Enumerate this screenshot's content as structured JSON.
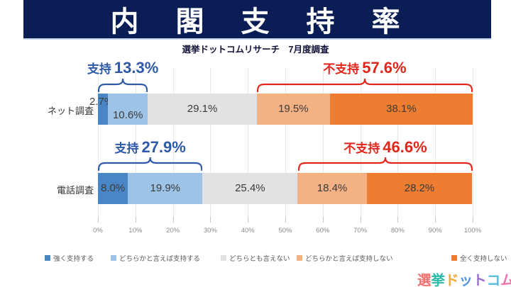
{
  "header": {
    "title": "内　閣　支　持　率",
    "subtitle": "選挙ドットコムリサーチ　7月度調査",
    "banner_color": "#0A1E55"
  },
  "chart_data": {
    "type": "bar",
    "orientation": "horizontal-stacked",
    "xlim": [
      0,
      100
    ],
    "grid": true,
    "x_ticks": [
      "0%",
      "10%",
      "20%",
      "30%",
      "40%",
      "50%",
      "60%",
      "70%",
      "80%",
      "90%",
      "100%"
    ],
    "categories": [
      "ネット調査",
      "電話調査"
    ],
    "series": [
      {
        "name": "強く支持する",
        "color": "#4A86C5",
        "values": [
          2.7,
          8.0
        ]
      },
      {
        "name": "どちらかと言えば支持する",
        "color": "#9DC3E6",
        "values": [
          10.6,
          19.9
        ]
      },
      {
        "name": "どちらとも言えない",
        "color": "#E2E2E2",
        "values": [
          29.1,
          25.4
        ]
      },
      {
        "name": "どちらかと言えば支持しない",
        "color": "#F4B183",
        "values": [
          19.5,
          18.4
        ]
      },
      {
        "name": "全く支持しない",
        "color": "#ED7D31",
        "values": [
          38.1,
          28.2
        ]
      }
    ],
    "annotations": [
      {
        "row": 0,
        "type": "support",
        "word": "支持",
        "value_text": "13.3%",
        "color": "#2D59A7",
        "span": [
          0,
          13.3
        ]
      },
      {
        "row": 0,
        "type": "oppose",
        "word": "不支持",
        "value_text": "57.6%",
        "color": "#E1251B",
        "span": [
          42.4,
          100
        ]
      },
      {
        "row": 1,
        "type": "support",
        "word": "支持",
        "value_text": "27.9%",
        "color": "#2D59A7",
        "span": [
          0,
          27.9
        ]
      },
      {
        "row": 1,
        "type": "oppose",
        "word": "不支持",
        "value_text": "46.6%",
        "color": "#E1251B",
        "span": [
          53.4,
          100
        ]
      }
    ],
    "legend_position": "bottom"
  },
  "logo": {
    "text": "選挙ドットコム",
    "colors": [
      "#F2706D",
      "#2BB8A8",
      "#F5A83C",
      "#4F8FDE",
      "#9B6FC9",
      "#55BBE0",
      "#F06EA9"
    ]
  }
}
